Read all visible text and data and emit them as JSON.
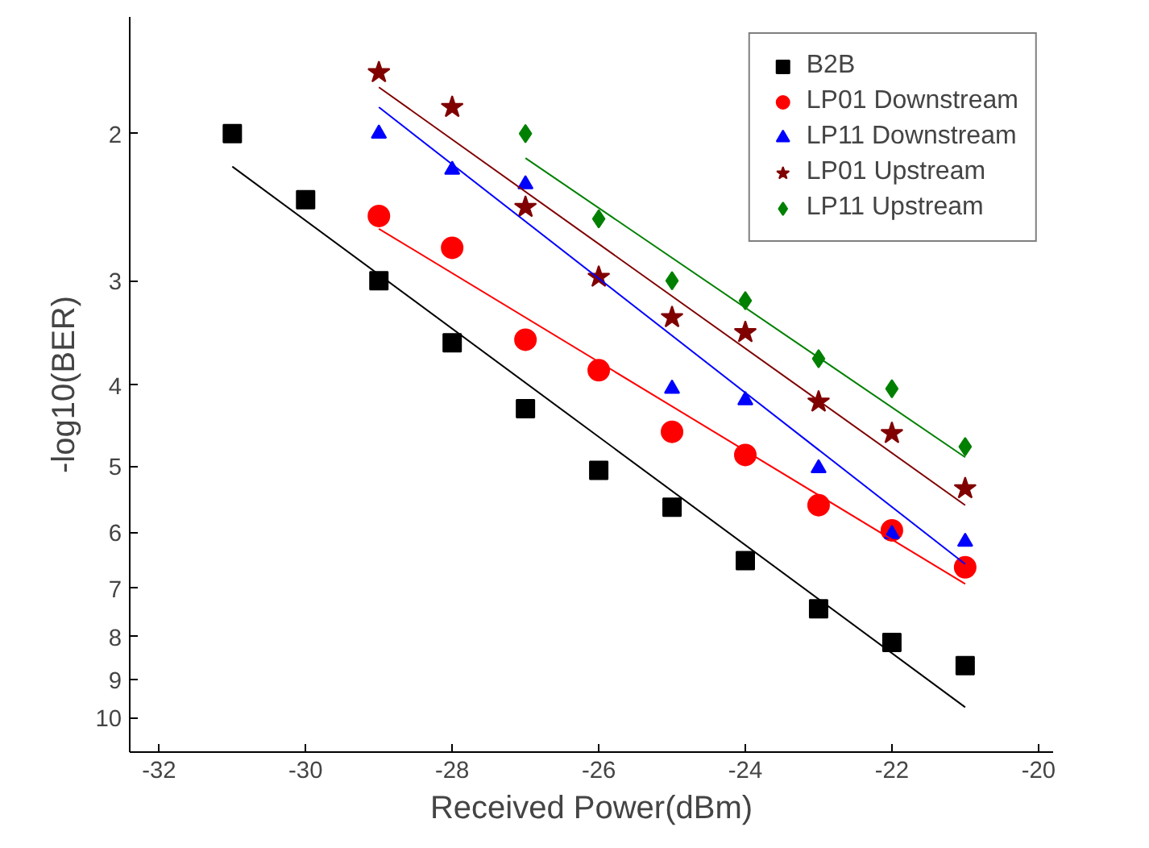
{
  "chart_data": {
    "type": "scatter",
    "xlabel": "Received Power(dBm)",
    "ylabel": "-log10(BER)",
    "x": [
      -31,
      -30,
      -29,
      -28,
      -27,
      -26,
      -25,
      -24,
      -23,
      -22,
      -21
    ],
    "series": [
      {
        "name": "B2B",
        "color": "#000000",
        "marker": "square",
        "values": [
          2.0,
          2.4,
          3.0,
          3.56,
          4.27,
          5.06,
          5.6,
          6.49,
          7.41,
          8.13,
          8.67
        ]
      },
      {
        "name": "LP01 Downstream",
        "color": "#ff0000",
        "marker": "circle",
        "x": [
          -29,
          -28,
          -27,
          -26,
          -25,
          -24,
          -23,
          -22,
          -21
        ],
        "values": [
          2.51,
          2.74,
          3.53,
          3.84,
          4.55,
          4.85,
          5.57,
          5.97,
          6.61
        ]
      },
      {
        "name": "LP11 Downstream",
        "color": "#0000ff",
        "marker": "triangle",
        "x": [
          -29,
          -28,
          -27,
          -25,
          -24,
          -23,
          -22,
          -21
        ],
        "values": [
          2.0,
          2.21,
          2.3,
          4.04,
          4.17,
          5.03,
          6.03,
          6.16
        ]
      },
      {
        "name": "LP01 Upstream",
        "color": "#800000",
        "marker": "star",
        "x": [
          -29,
          -28,
          -27,
          -26,
          -25,
          -24,
          -23,
          -22,
          -21
        ],
        "values": [
          1.69,
          1.86,
          2.45,
          2.97,
          3.32,
          3.46,
          4.19,
          4.57,
          5.32
        ]
      },
      {
        "name": "LP11 Upstream",
        "color": "#008000",
        "marker": "diamond",
        "x": [
          -27,
          -26,
          -25,
          -24,
          -23,
          -22,
          -21
        ],
        "values": [
          2.0,
          2.53,
          3.0,
          3.17,
          3.72,
          4.04,
          4.74
        ]
      },
      {
        "type": "line",
        "color": "#000000",
        "x": [
          -31,
          -21
        ],
        "values": [
          2.19,
          9.72
        ]
      },
      {
        "type": "line",
        "color": "#ff0000",
        "x": [
          -29,
          -21
        ],
        "values": [
          2.6,
          6.92
        ]
      },
      {
        "type": "line",
        "color": "#0000ff",
        "x": [
          -29,
          -21
        ],
        "values": [
          1.86,
          6.55
        ]
      },
      {
        "type": "line",
        "color": "#800000",
        "x": [
          -29,
          -21
        ],
        "values": [
          1.76,
          5.57
        ]
      },
      {
        "type": "line",
        "color": "#008000",
        "x": [
          -27,
          -21
        ],
        "values": [
          2.14,
          4.88
        ]
      }
    ],
    "log": "y",
    "xlim": [
      -32.4,
      -19.8
    ],
    "ylim": [
      11,
      1.45
    ],
    "xticks": [
      -32,
      -30,
      -28,
      -26,
      -24,
      -22,
      -20
    ],
    "yticks": [
      2,
      3,
      4,
      5,
      6,
      7,
      8,
      9,
      10
    ],
    "grid": false,
    "legend": "top right"
  }
}
